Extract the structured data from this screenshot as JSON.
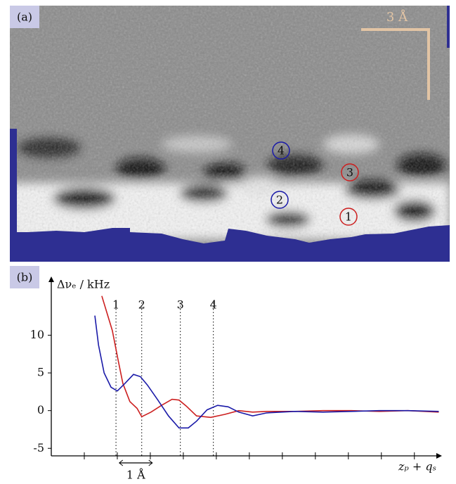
{
  "panel_a": {
    "label": "(a)",
    "scale_bar": "3 Å",
    "markers": [
      "4",
      "3",
      "2",
      "1"
    ]
  },
  "chart_data": {
    "type": "line",
    "panel_label": "(b)",
    "y_label": "Δνₑ / kHz",
    "x_label": "zₚ + qₛ",
    "xlim": [
      0,
      11.75
    ],
    "xticks": [
      1,
      2,
      3,
      4,
      5,
      6,
      7,
      8,
      9,
      10,
      11
    ],
    "ylim": [
      -6,
      17.6
    ],
    "yticks": [
      -5,
      0,
      5,
      10
    ],
    "reference_lines": [
      {
        "label": "1",
        "x": 1.96
      },
      {
        "label": "2",
        "x": 2.74
      },
      {
        "label": "3",
        "x": 3.91
      },
      {
        "label": "4",
        "x": 4.91
      }
    ],
    "scale_bar": {
      "label": "1 Å",
      "x": [
        2.06,
        3.06
      ]
    },
    "series": [
      {
        "color": "#cc1f1f",
        "x": [
          1.53,
          1.85,
          2.02,
          2.17,
          2.38,
          2.6,
          2.74,
          3.02,
          3.34,
          3.66,
          3.87,
          4.09,
          4.4,
          4.83,
          5.26,
          5.68,
          6.1,
          6.53,
          7.38,
          8.23,
          9.09,
          9.94,
          10.8,
          11.74
        ],
        "values": [
          15.2,
          10.6,
          6.8,
          3.6,
          1.2,
          0.3,
          -0.8,
          -0.2,
          0.7,
          1.5,
          1.4,
          0.6,
          -0.7,
          -0.9,
          -0.5,
          0,
          -0.2,
          -0.1,
          -0.1,
          0,
          0,
          -0.1,
          0,
          -0.2
        ]
      },
      {
        "color": "#1a1aa8",
        "x": [
          1.32,
          1.43,
          1.6,
          1.81,
          2.0,
          2.23,
          2.49,
          2.7,
          2.91,
          3.23,
          3.55,
          3.87,
          4.15,
          4.4,
          4.72,
          5.04,
          5.36,
          5.68,
          6.1,
          6.53,
          7.38,
          8.23,
          9.09,
          9.94,
          10.8,
          11.74
        ],
        "values": [
          12.6,
          8.7,
          5,
          3.1,
          2.6,
          3.6,
          4.8,
          4.5,
          3.4,
          1.4,
          -0.7,
          -2.3,
          -2.3,
          -1.4,
          0.1,
          0.7,
          0.5,
          -0.2,
          -0.7,
          -0.3,
          -0.1,
          -0.2,
          -0.1,
          0,
          0,
          -0.1
        ]
      }
    ]
  }
}
